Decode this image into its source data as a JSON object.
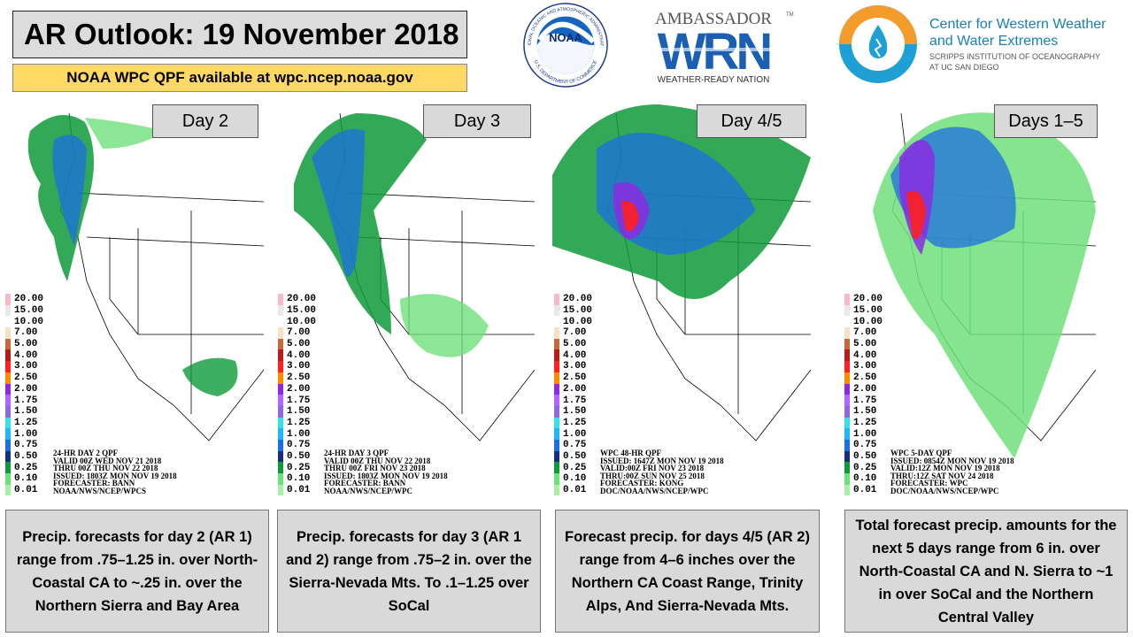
{
  "header": {
    "title": "AR Outlook: 19 November 2018",
    "subtitle": "NOAA WPC QPF available at wpc.ncep.noaa.gov"
  },
  "logos": {
    "noaa": {
      "center_text": "NOAA",
      "ring_top": "NATIONAL OCEANIC AND ATMOSPHERIC ADMINISTRATION",
      "ring_bottom": "U.S. DEPARTMENT OF COMMERCE",
      "icon": "noaa-logo"
    },
    "wrn": {
      "top_text": "AMBASSADOR",
      "tm": "TM",
      "big_text": "WRN",
      "bottom_text": "WEATHER-READY NATION",
      "icon": "wrn-logo"
    },
    "cw3e": {
      "line1": "Center for Western Weather",
      "line2": "and Water Extremes",
      "line3": "SCRIPPS INSTITUTION OF OCEANOGRAPHY",
      "line4": "AT UC SAN DIEGO",
      "icon": "water-drop-logo"
    }
  },
  "legend": {
    "values": [
      "20.00",
      "15.00",
      "10.00",
      "7.00",
      "5.00",
      "4.00",
      "3.00",
      "2.50",
      "2.00",
      "1.75",
      "1.50",
      "1.25",
      "1.00",
      "0.75",
      "0.50",
      "0.25",
      "0.10",
      "0.01"
    ],
    "colors": [
      "#f7b8c8",
      "#e8e8e8",
      "#ffffff",
      "#f3e2c4",
      "#c46a3a",
      "#b71c1c",
      "#ff2020",
      "#ff8c00",
      "#8a2be2",
      "#b266ff",
      "#8e6ad6",
      "#38e0e8",
      "#20b8f0",
      "#1e6fe0",
      "#14317a",
      "#0e9a3a",
      "#6ee07a",
      "#a8f0a8"
    ]
  },
  "panels": [
    {
      "label": "Day 2",
      "info": [
        "24-HR DAY 2 QPF",
        "VALID 00Z WED NOV 21 2018",
        "THRU 00Z THU NOV 22 2018",
        "ISSUED: 1803Z MON NOV 19 2018",
        "FORECASTER: BANN",
        "NOAA/NWS/NCEP/WPCS"
      ],
      "description": "Precip. forecasts for day 2 (AR 1) range from .75–1.25 in. over North-Coastal  CA to ~.25 in. over the Northern Sierra and Bay Area"
    },
    {
      "label": "Day 3",
      "info": [
        "24-HR DAY 3 QPF",
        "VALID 00Z THU NOV 22 2018",
        "THRU 00Z FRI NOV 23 2018",
        "ISSUED: 1803Z MON NOV 19 2018",
        "FORECASTER: BANN",
        "NOAA/NWS/NCEP/WPC"
      ],
      "description": "Precip. forecasts for day 3 (AR 1 and 2) range from .75–2 in. over the Sierra-Nevada Mts. To .1–1.25 over SoCal"
    },
    {
      "label": "Day 4/5",
      "info": [
        "WPC 48-HR QPF",
        "ISSUED: 1647Z MON NOV 19 2018",
        "VALID:00Z FRI NOV 23 2018",
        "THRU:00Z SUN NOV 25 2018",
        "FORECASTER: KONG",
        "DOC/NOAA/NWS/NCEP/WPC"
      ],
      "description": "Forecast precip. for days 4/5 (AR 2) range from 4–6 inches over the Northern  CA Coast Range, Trinity Alps, And Sierra-Nevada Mts."
    },
    {
      "label": "Days 1–5",
      "info": [
        "WPC 5-DAY QPF",
        "ISSUED: 0854Z MON NOV 19 2018",
        "VALID:12Z MON NOV 19 2018",
        "THRU:12Z SAT NOV 24 2018",
        "FORECASTER: WPC",
        "DOC/NOAA/NWS/NCEP/WPC"
      ],
      "description": "Total forecast precip. amounts for the next 5 days range from 6 in. over North-Coastal  CA and N. Sierra to ~1 in over SoCal and the Northern Central Valley"
    }
  ]
}
